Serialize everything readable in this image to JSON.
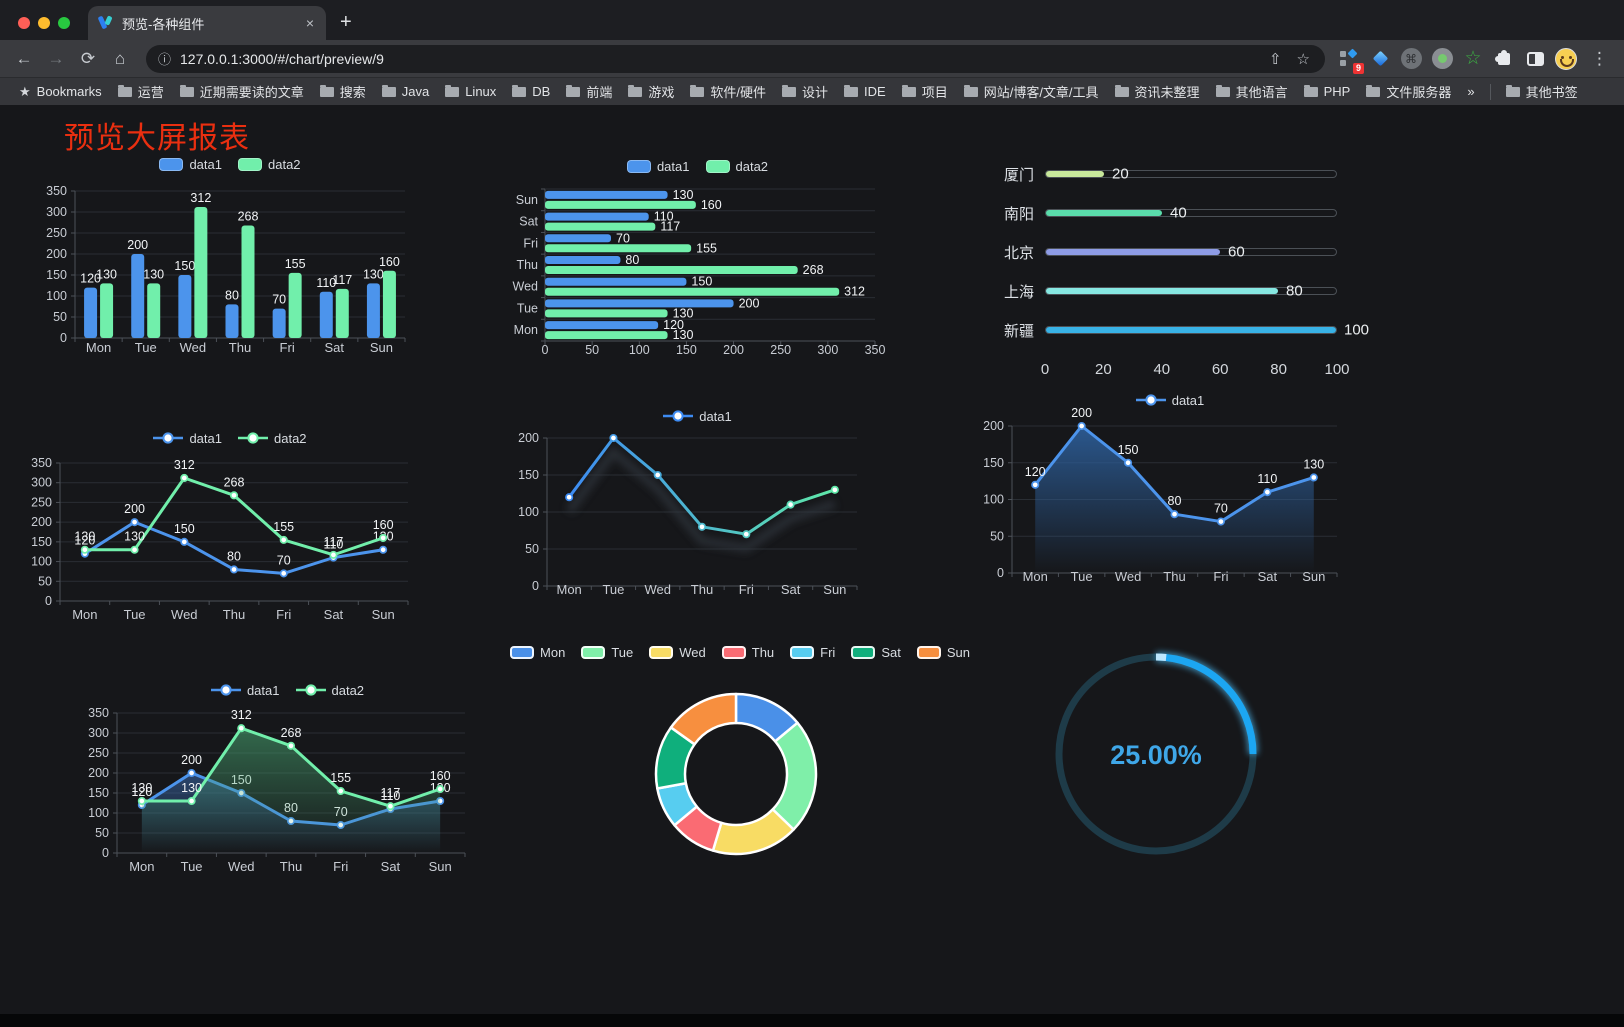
{
  "browser": {
    "tab_title": "预览-各种组件",
    "tab_close": "×",
    "new_tab": "+",
    "back_icon": "←",
    "forward_icon": "→",
    "reload_icon": "⟳",
    "home_icon": "⌂",
    "info_icon": "ⓘ",
    "url": "127.0.0.1:3000/#/chart/preview/9",
    "share_icon": "⇧",
    "star_icon": "☆",
    "cmd_glyph": "⌘",
    "green_star_glyph": "☆",
    "menu_icon": "⋮",
    "extension_badge": "9",
    "bookmarks_label": "Bookmarks",
    "bookmark_folders": [
      "运营",
      "近期需要读的文章",
      "搜索",
      "Java",
      "Linux",
      "DB",
      "前端",
      "游戏",
      "软件/硬件",
      "设计",
      "IDE",
      "项目",
      "网站/博客/文章/工具",
      "资讯未整理",
      "其他语言",
      "PHP",
      "文件服务器"
    ],
    "bookmarks_overflow": "»",
    "other_bookmarks": "其他书签"
  },
  "page": {
    "title": "预览大屏报表",
    "title_color": "#EA2F10"
  },
  "chart_data": [
    {
      "id": "grouped-bar",
      "type": "bar",
      "categories": [
        "Mon",
        "Tue",
        "Wed",
        "Thu",
        "Fri",
        "Sat",
        "Sun"
      ],
      "series": [
        {
          "name": "data1",
          "color": "#4C94EC",
          "values": [
            120,
            200,
            150,
            80,
            70,
            110,
            130
          ]
        },
        {
          "name": "data2",
          "color": "#71EFAB",
          "values": [
            130,
            130,
            312,
            268,
            155,
            117,
            160
          ]
        }
      ],
      "ylim": [
        0,
        350
      ],
      "yticks": [
        0,
        50,
        100,
        150,
        200,
        250,
        300,
        350
      ],
      "legend_position": "top",
      "grid": true,
      "value_labels": true
    },
    {
      "id": "horizontal-bar",
      "type": "hbar",
      "categories": [
        "Mon",
        "Tue",
        "Wed",
        "Thu",
        "Fri",
        "Sat",
        "Sun"
      ],
      "categories_display": "Sun at top, Mon at bottom",
      "series": [
        {
          "name": "data1",
          "color": "#4C94EC",
          "values": [
            120,
            200,
            150,
            80,
            70,
            110,
            130
          ]
        },
        {
          "name": "data2",
          "color": "#71EFAB",
          "values": [
            130,
            130,
            312,
            268,
            155,
            117,
            160
          ]
        }
      ],
      "xlim": [
        0,
        350
      ],
      "xticks": [
        0,
        50,
        100,
        150,
        200,
        250,
        300,
        350
      ],
      "legend_position": "top",
      "value_labels": true
    },
    {
      "id": "progress-bars",
      "type": "bar",
      "variant": "progress",
      "rows": [
        {
          "label": "厦门",
          "value": 20,
          "color": "#C8E89B"
        },
        {
          "label": "南阳",
          "value": 40,
          "color": "#5ADCAB"
        },
        {
          "label": "北京",
          "value": 60,
          "color": "#8E9CE6"
        },
        {
          "label": "上海",
          "value": 80,
          "color": "#87E8E2"
        },
        {
          "label": "新疆",
          "value": 100,
          "color": "#38B2E6"
        }
      ],
      "xlim": [
        0,
        100
      ],
      "xticks": [
        0,
        20,
        40,
        60,
        80,
        100
      ]
    },
    {
      "id": "line-two-series",
      "type": "line",
      "categories": [
        "Mon",
        "Tue",
        "Wed",
        "Thu",
        "Fri",
        "Sat",
        "Sun"
      ],
      "series": [
        {
          "name": "data1",
          "color": "#4C94EC",
          "values": [
            120,
            200,
            150,
            80,
            70,
            110,
            130
          ]
        },
        {
          "name": "data2",
          "color": "#71EFAB",
          "values": [
            130,
            130,
            312,
            268,
            155,
            117,
            160
          ]
        }
      ],
      "ylim": [
        0,
        350
      ],
      "yticks": [
        0,
        50,
        100,
        150,
        200,
        250,
        300,
        350
      ],
      "legend_position": "top",
      "value_labels": true
    },
    {
      "id": "gradient-line",
      "type": "line",
      "categories": [
        "Mon",
        "Tue",
        "Wed",
        "Thu",
        "Fri",
        "Sat",
        "Sun"
      ],
      "series": [
        {
          "name": "data1",
          "gradient": [
            "#3D8BF2",
            "#5FE8A8"
          ],
          "shadow": true,
          "values": [
            120,
            200,
            150,
            80,
            70,
            110,
            130
          ]
        }
      ],
      "ylim": [
        0,
        200
      ],
      "yticks": [
        0,
        50,
        100,
        150,
        200
      ],
      "legend_position": "top",
      "value_labels": false
    },
    {
      "id": "area-line",
      "type": "line",
      "categories": [
        "Mon",
        "Tue",
        "Wed",
        "Thu",
        "Fri",
        "Sat",
        "Sun"
      ],
      "series": [
        {
          "name": "data1",
          "color": "#4C94EC",
          "area": [
            "rgba(45,95,155,0.9)",
            "rgba(45,95,155,0)"
          ],
          "values": [
            120,
            200,
            150,
            80,
            70,
            110,
            130
          ]
        }
      ],
      "ylim": [
        0,
        200
      ],
      "yticks": [
        0,
        50,
        100,
        150,
        200
      ],
      "legend_position": "top",
      "value_labels": true
    },
    {
      "id": "two-series-area",
      "type": "line",
      "categories": [
        "Mon",
        "Tue",
        "Wed",
        "Thu",
        "Fri",
        "Sat",
        "Sun"
      ],
      "series": [
        {
          "name": "data1",
          "color": "#4C94EC",
          "area": [
            "rgba(60,110,180,0.55)",
            "rgba(60,110,180,0)"
          ],
          "values": [
            120,
            200,
            150,
            80,
            70,
            110,
            130
          ]
        },
        {
          "name": "data2",
          "color": "#71EFAB",
          "area": [
            "rgba(70,160,110,0.6)",
            "rgba(70,160,110,0)"
          ],
          "values": [
            130,
            130,
            312,
            268,
            155,
            117,
            160
          ]
        }
      ],
      "ylim": [
        0,
        350
      ],
      "yticks": [
        0,
        50,
        100,
        150,
        200,
        250,
        300,
        350
      ],
      "legend_position": "top",
      "value_labels": true
    },
    {
      "id": "donut",
      "type": "pie",
      "inner_radius_ratio": 0.64,
      "legend_position": "top",
      "items": [
        {
          "name": "Mon",
          "value": 120,
          "color": "#4A90E8"
        },
        {
          "name": "Tue",
          "value": 200,
          "color": "#7FEFA9"
        },
        {
          "name": "Wed",
          "value": 150,
          "color": "#F8DC64"
        },
        {
          "name": "Thu",
          "value": 80,
          "color": "#FA6B73"
        },
        {
          "name": "Fri",
          "value": 70,
          "color": "#57CDF0"
        },
        {
          "name": "Sat",
          "value": 110,
          "color": "#0FAF7C"
        },
        {
          "name": "Sun",
          "value": 130,
          "color": "#F78F3F"
        }
      ]
    },
    {
      "id": "ring-progress",
      "type": "gauge",
      "value": 25,
      "display": "25.00%",
      "progress_color": "#1CA6F2",
      "track_color": "#1E3B48",
      "text_color": "#3FA7E8"
    }
  ]
}
